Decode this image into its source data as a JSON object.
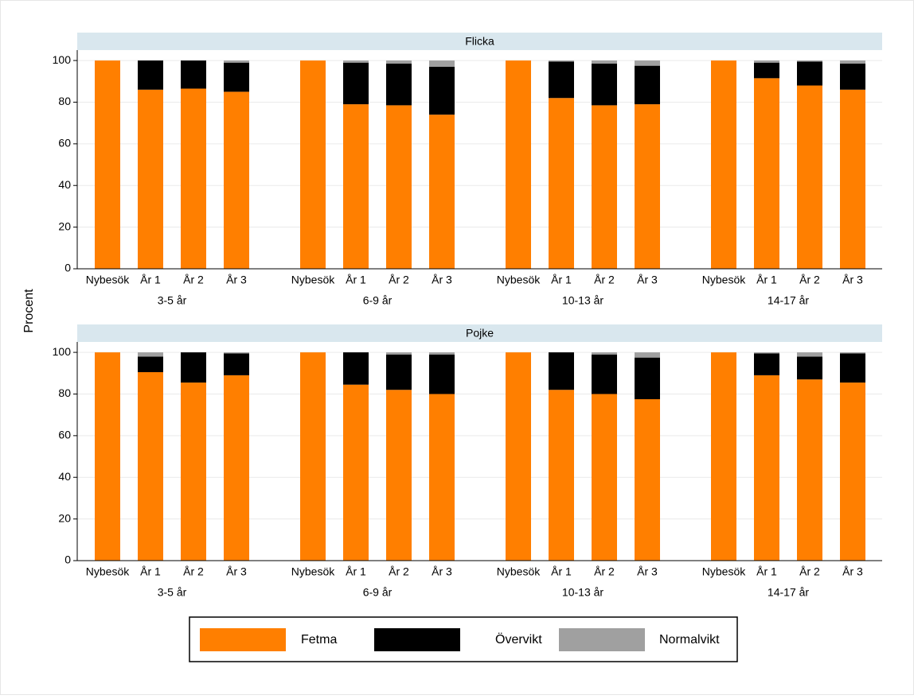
{
  "chart_data": {
    "type": "bar",
    "stacked": true,
    "ylabel": "Procent",
    "categories": [
      "Nybesök",
      "År 1",
      "År 2",
      "År 3",
      "Nybesök",
      "År 1",
      "År 2",
      "År 3",
      "Nybesök",
      "År 1",
      "År 2",
      "År 3",
      "Nybesök",
      "År 1",
      "År 2",
      "År 3"
    ],
    "groups": [
      "3-5 år",
      "6-9  år",
      "10-13  år",
      "14-17 år"
    ],
    "ylim": [
      0,
      105
    ],
    "yticks": [
      0,
      20,
      40,
      60,
      80,
      100
    ],
    "grid": true,
    "series": [
      {
        "name": "Fetma",
        "color": "#ff7f00"
      },
      {
        "name": "Övervikt",
        "color": "#000000"
      },
      {
        "name": "Normalvikt",
        "color": "#a0a0a0"
      }
    ],
    "panels": [
      {
        "title": "Flicka",
        "values": [
          [
            100,
            86,
            86.5,
            85,
            100,
            79,
            78.5,
            74,
            100,
            82,
            78.5,
            79,
            100,
            91.5,
            88,
            86
          ],
          [
            0,
            14,
            13.5,
            14,
            0,
            20,
            20,
            23,
            0,
            17.5,
            20,
            18.5,
            0,
            7.5,
            11.5,
            12.5
          ],
          [
            0,
            0,
            0,
            1,
            0,
            1,
            1.5,
            3,
            0,
            0.5,
            1.5,
            2.5,
            0,
            1,
            0.5,
            1.5
          ]
        ]
      },
      {
        "title": "Pojke",
        "values": [
          [
            100,
            90.5,
            85.5,
            89,
            100,
            84.5,
            82,
            80,
            100,
            82,
            80,
            77.5,
            100,
            89,
            87,
            85.5
          ],
          [
            0,
            7.5,
            14.5,
            10.5,
            0,
            15.5,
            17,
            19,
            0,
            18,
            19,
            20,
            0,
            10.5,
            11,
            14
          ],
          [
            0,
            2,
            0,
            0.5,
            0,
            0,
            1,
            1,
            0,
            0,
            1,
            2.5,
            0,
            0.5,
            2,
            0.5
          ]
        ]
      }
    ]
  }
}
